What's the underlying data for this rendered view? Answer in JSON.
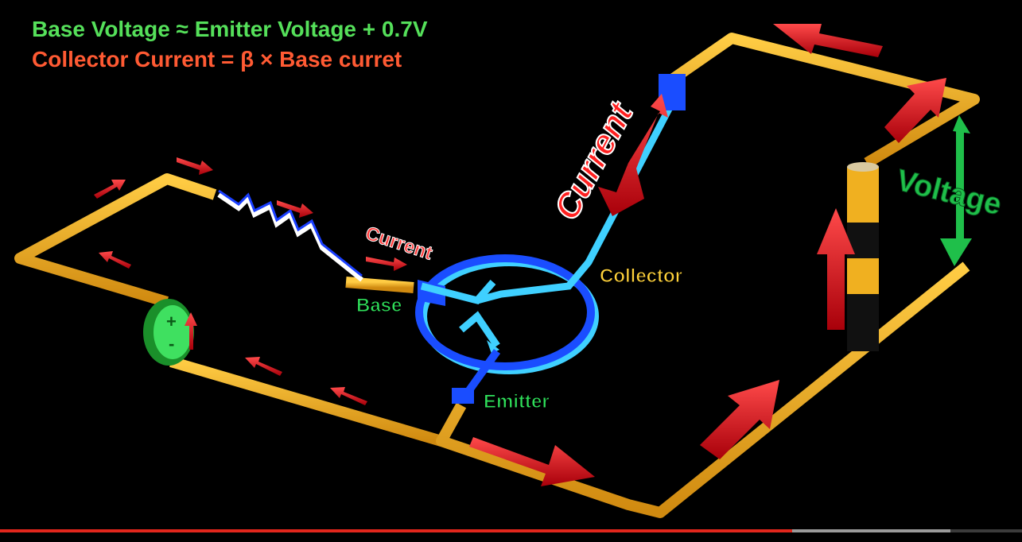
{
  "overlay": {
    "formula_base": "Base Voltage ≈ Emitter Voltage + 0.7V",
    "formula_collector": "Collector Current = β × Base curret"
  },
  "labels": {
    "base": "Base",
    "collector": "Collector",
    "emitter": "Emitter",
    "current_small": "Current",
    "current_large": "Current",
    "voltage": "Voltage",
    "battery_plus": "+",
    "battery_minus": "-"
  },
  "colors": {
    "wire": "#f2b22a",
    "arrow": "#e3141a",
    "transistor": "#1a4dff",
    "transistor_light": "#3fd0ff",
    "label_green": "#2fe05a",
    "label_yellow": "#ffd23a",
    "voltage_green": "#1fbf4a",
    "progress": "#e1261c"
  },
  "video": {
    "played_fraction": 0.775,
    "buffered_fraction": 0.93
  }
}
